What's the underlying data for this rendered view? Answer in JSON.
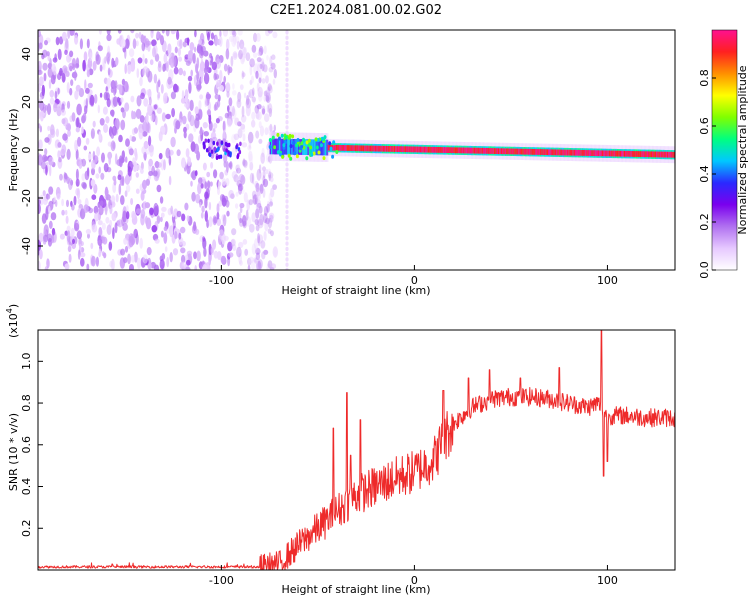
{
  "title": "C2E1.2024.081.00.02.G02",
  "colors": {
    "snr_line": "#ee2a2a",
    "colormap": [
      "#ffffff",
      "#e6c8ff",
      "#b070f0",
      "#7a00ee",
      "#2a2aff",
      "#00c8ff",
      "#00ff80",
      "#80ff00",
      "#ffff00",
      "#ff9000",
      "#ff2020",
      "#ff1090"
    ]
  },
  "chart_data": [
    {
      "type": "heatmap",
      "xlabel": "Height of straight line (km)",
      "ylabel": "Frequency (Hz)",
      "xlim": [
        -195,
        135
      ],
      "ylim": [
        -50,
        50
      ],
      "x_ticks": [
        -100,
        0,
        100
      ],
      "x_tick_labels": [
        "-100",
        "0",
        "100"
      ],
      "y_ticks": [
        -40,
        -20,
        0,
        20,
        40
      ],
      "y_tick_labels": [
        "-40",
        "-20",
        "0",
        "20",
        "40"
      ],
      "colorbar": {
        "label": "Normalized spectral amplitude",
        "range": [
          0,
          1
        ],
        "ticks": [
          0.0,
          0.2,
          0.4,
          0.6,
          0.8
        ],
        "tick_labels": [
          "0.0",
          "0.2",
          "0.4",
          "0.6",
          "0.8"
        ]
      },
      "features": {
        "noise_region_x": [
          -195,
          -72
        ],
        "gap_line_x": -66,
        "carrier_x": [
          -75,
          135
        ],
        "carrier_freq_start": 1.5,
        "carrier_freq_end": -2.0,
        "carrier_strong_x": [
          -45,
          135
        ]
      }
    },
    {
      "type": "line",
      "xlabel": "Height of straight line (km)",
      "ylabel": "SNR (10 * v/v)",
      "scale_label": "(x10",
      "scale_exponent": "4",
      "scale_suffix": ")",
      "xlim": [
        -195,
        135
      ],
      "ylim": [
        0,
        1.15
      ],
      "x_ticks": [
        -100,
        0,
        100
      ],
      "x_tick_labels": [
        "-100",
        "0",
        "100"
      ],
      "y_ticks": [
        0.2,
        0.4,
        0.6,
        0.8,
        1.0
      ],
      "y_tick_labels": [
        "0.2",
        "0.4",
        "0.6",
        "0.8",
        "1.0"
      ],
      "trend": {
        "x": [
          -195,
          -80,
          -70,
          -60,
          -50,
          -40,
          -30,
          -20,
          -10,
          0,
          10,
          15,
          20,
          30,
          40,
          50,
          60,
          70,
          80,
          90,
          95,
          100,
          110,
          120,
          135
        ],
        "y": [
          0.015,
          0.015,
          0.03,
          0.12,
          0.2,
          0.28,
          0.36,
          0.4,
          0.44,
          0.47,
          0.53,
          0.62,
          0.7,
          0.78,
          0.82,
          0.83,
          0.83,
          0.82,
          0.8,
          0.78,
          0.8,
          0.74,
          0.74,
          0.73,
          0.73
        ]
      },
      "spikes": {
        "x": [
          -42,
          -35,
          -33,
          -28,
          15,
          28,
          39,
          55,
          75,
          97,
          98,
          100
        ],
        "y": [
          0.68,
          0.85,
          0.55,
          0.72,
          0.86,
          0.92,
          0.96,
          0.92,
          0.97,
          1.15,
          0.45,
          0.52
        ]
      }
    }
  ]
}
